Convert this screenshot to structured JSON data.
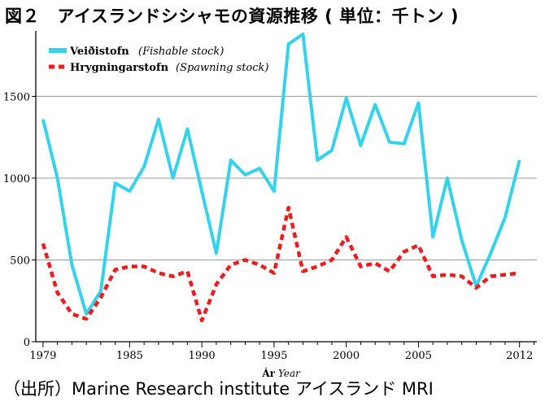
{
  "figure": {
    "title": "図２　アイスランドシシャモの資源推移 ( 単位：千トン )",
    "source": "（出所）Marine Research institute アイスランド MRI"
  },
  "chart_data": {
    "type": "line",
    "xlabel": "Ár",
    "xlabel_en": "Year",
    "xlim": [
      1978.5,
      2013.2
    ],
    "ylim": [
      0,
      1900
    ],
    "x_ticks": [
      1979,
      1985,
      1990,
      1995,
      2000,
      2005,
      2012
    ],
    "y_ticks": [
      0,
      500,
      1000,
      1500
    ],
    "grid": "horizontal",
    "legend_position": "top-left",
    "series": [
      {
        "name": "Veiðistofn",
        "name_en": "(Fishable stock)",
        "color": "#35d2ec",
        "style": "solid",
        "x": [
          1979,
          1980,
          1981,
          1982,
          1983,
          1984,
          1985,
          1986,
          1987,
          1988,
          1989,
          1990,
          1991,
          1992,
          1993,
          1994,
          1995,
          1996,
          1997,
          1998,
          1999,
          2000,
          2001,
          2002,
          2003,
          2004,
          2005,
          2006,
          2007,
          2008,
          2009,
          2010,
          2011,
          2012
        ],
        "values": [
          1360,
          1000,
          470,
          170,
          310,
          970,
          920,
          1070,
          1360,
          1000,
          1300,
          920,
          540,
          1110,
          1020,
          1060,
          920,
          1820,
          1880,
          1110,
          1170,
          1490,
          1200,
          1450,
          1220,
          1210,
          1460,
          640,
          1000,
          620,
          340,
          540,
          760,
          1110
        ]
      },
      {
        "name": "Hrygningarstofn",
        "name_en": "(Spawning stock)",
        "color": "#ee1c1c",
        "style": "dashed",
        "x": [
          1979,
          1980,
          1981,
          1982,
          1983,
          1984,
          1985,
          1986,
          1987,
          1988,
          1989,
          1990,
          1991,
          1992,
          1993,
          1994,
          1995,
          1996,
          1997,
          1998,
          1999,
          2000,
          2001,
          2002,
          2003,
          2004,
          2005,
          2006,
          2007,
          2008,
          2009,
          2010,
          2011,
          2012
        ],
        "values": [
          600,
          300,
          170,
          140,
          270,
          440,
          460,
          460,
          420,
          400,
          430,
          130,
          350,
          470,
          500,
          470,
          420,
          820,
          430,
          460,
          500,
          640,
          460,
          480,
          430,
          550,
          590,
          400,
          410,
          400,
          330,
          400,
          410,
          420
        ]
      }
    ]
  }
}
